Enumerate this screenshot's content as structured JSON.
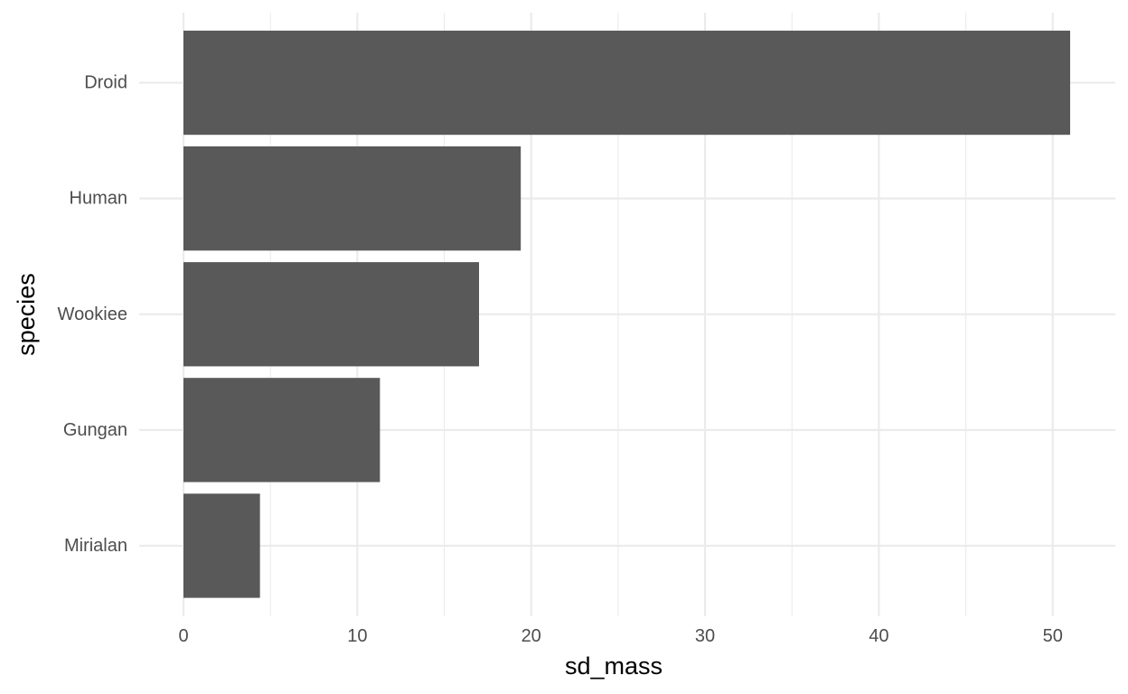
{
  "chart_data": {
    "type": "bar",
    "orientation": "horizontal",
    "categories": [
      "Droid",
      "Human",
      "Wookiee",
      "Gungan",
      "Mirialan"
    ],
    "values": [
      51.0,
      19.4,
      17.0,
      11.3,
      4.4
    ],
    "xlabel": "sd_mass",
    "ylabel": "species",
    "xlim": [
      0,
      53.6
    ],
    "x_ticks": [
      "0",
      "10",
      "20",
      "30",
      "40",
      "50"
    ],
    "x_tick_values": [
      0,
      10,
      20,
      30,
      40,
      50
    ],
    "grid": true,
    "legend": "none",
    "colors": {
      "bar": "#595959",
      "grid": "#ebebeb",
      "background": "#ffffff",
      "tick_text": "#4d4d4d",
      "title_text": "#000000"
    }
  }
}
